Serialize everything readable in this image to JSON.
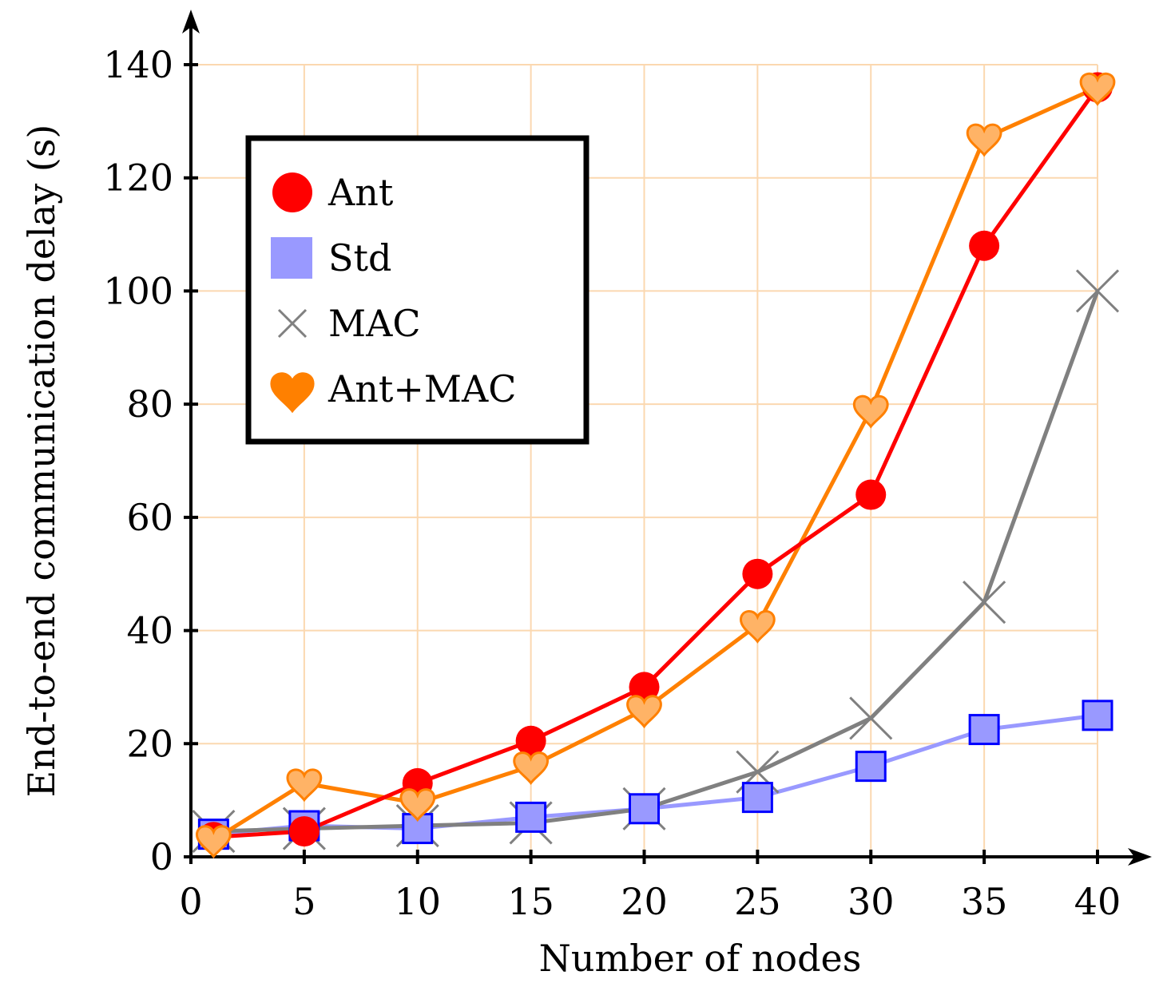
{
  "chart_data": {
    "type": "line",
    "title": "",
    "xlabel": "Number of nodes",
    "ylabel": "End-to-end communication delay (s)",
    "xlim": [
      0,
      40
    ],
    "ylim": [
      0,
      140
    ],
    "xticks": [
      "0",
      "5",
      "10",
      "15",
      "20",
      "25",
      "30",
      "35",
      "40"
    ],
    "yticks": [
      "0",
      "20",
      "40",
      "60",
      "80",
      "100",
      "120",
      "140"
    ],
    "grid": true,
    "grid_color": "#fbd8b0",
    "legend_position": "top-left",
    "series": [
      {
        "name": "Ant",
        "color": "#ff0000",
        "marker": "circle",
        "points": [
          [
            1,
            3.5
          ],
          [
            5,
            4.5
          ],
          [
            10,
            13
          ],
          [
            15,
            20.5
          ],
          [
            20,
            30
          ],
          [
            25,
            50
          ],
          [
            30,
            64
          ],
          [
            35,
            108
          ],
          [
            40,
            136
          ]
        ]
      },
      {
        "name": "Std",
        "color": "#9999ff",
        "marker_stroke": "#0000ff",
        "marker": "square",
        "points": [
          [
            1,
            4
          ],
          [
            5,
            5.5
          ],
          [
            10,
            5
          ],
          [
            15,
            7
          ],
          [
            20,
            8.5
          ],
          [
            25,
            10.5
          ],
          [
            30,
            16
          ],
          [
            35,
            22.5
          ],
          [
            40,
            25
          ]
        ]
      },
      {
        "name": "MAC",
        "color": "#808080",
        "marker": "cross",
        "points": [
          [
            1,
            4.5
          ],
          [
            5,
            5
          ],
          [
            10,
            5.5
          ],
          [
            15,
            6
          ],
          [
            20,
            8.5
          ],
          [
            25,
            15
          ],
          [
            30,
            24.5
          ],
          [
            35,
            45
          ],
          [
            40,
            100
          ]
        ]
      },
      {
        "name": "Ant+MAC",
        "color": "#ff8000",
        "marker_fill": "#ffb366",
        "marker": "heart",
        "points": [
          [
            1,
            3
          ],
          [
            5,
            13
          ],
          [
            10,
            9.5
          ],
          [
            15,
            16
          ],
          [
            20,
            26
          ],
          [
            25,
            41
          ],
          [
            30,
            79
          ],
          [
            35,
            127
          ],
          [
            40,
            136
          ]
        ]
      }
    ]
  }
}
